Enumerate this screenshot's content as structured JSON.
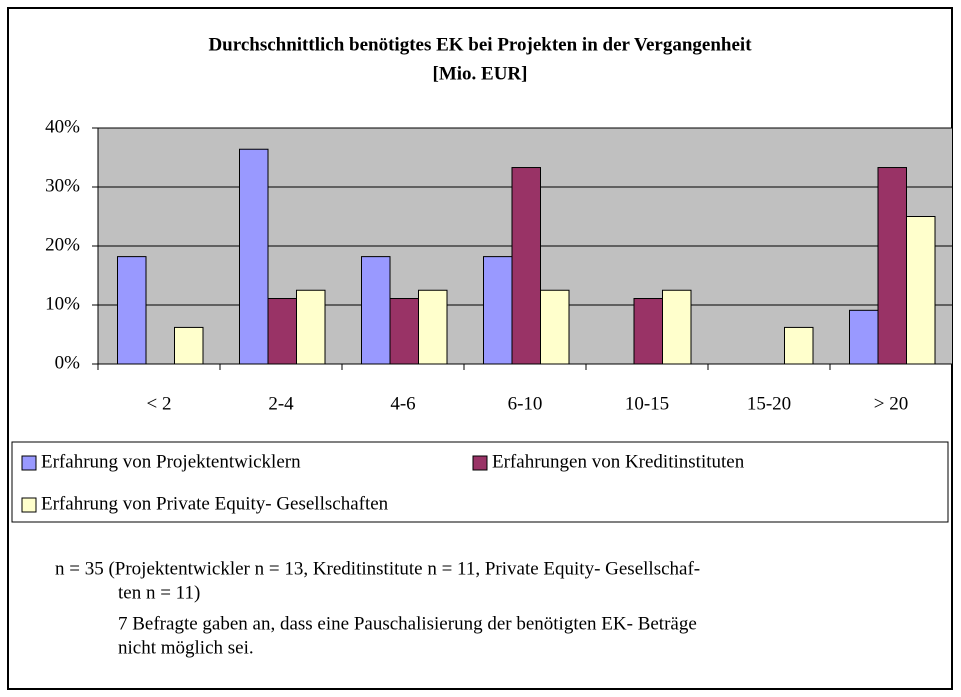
{
  "chart_data": {
    "type": "bar",
    "title": "Durchschnittlich benötigtes EK bei Projekten in der Vergangenheit",
    "subtitle": "[Mio. EUR]",
    "categories": [
      "< 2",
      "2-4",
      "4-6",
      "6-10",
      "10-15",
      "15-20",
      "> 20"
    ],
    "series": [
      {
        "name": "Erfahrung von Projektentwicklern",
        "color": "#9999ff",
        "values": [
          18.2,
          36.4,
          18.2,
          18.2,
          0,
          0,
          9.1
        ]
      },
      {
        "name": "Erfahrungen von Kreditinstituten",
        "color": "#993366",
        "values": [
          0,
          11.1,
          11.1,
          33.3,
          11.1,
          0,
          33.3
        ]
      },
      {
        "name": "Erfahrung von Private Equity- Gesellschaften",
        "color": "#ffffcc",
        "values": [
          6.2,
          12.5,
          12.5,
          12.5,
          12.5,
          6.2,
          25
        ]
      }
    ],
    "ylim": [
      0,
      40
    ],
    "yticks": [
      {
        "value": 0,
        "label": "0%"
      },
      {
        "value": 10,
        "label": "10%"
      },
      {
        "value": 20,
        "label": "20%"
      },
      {
        "value": 30,
        "label": "30%"
      },
      {
        "value": 40,
        "label": "40%"
      }
    ],
    "grid": true,
    "legend": "bottom",
    "notes": [
      "n = 35 (Projektentwickler n = 13, Kreditinstitute n = 11, Private Equity- Gesellschaf-",
      "ten n = 11)",
      "7 Befragte gaben an, dass eine Pauschalisierung der benötigten EK- Beträge",
      "nicht möglich sei."
    ]
  }
}
